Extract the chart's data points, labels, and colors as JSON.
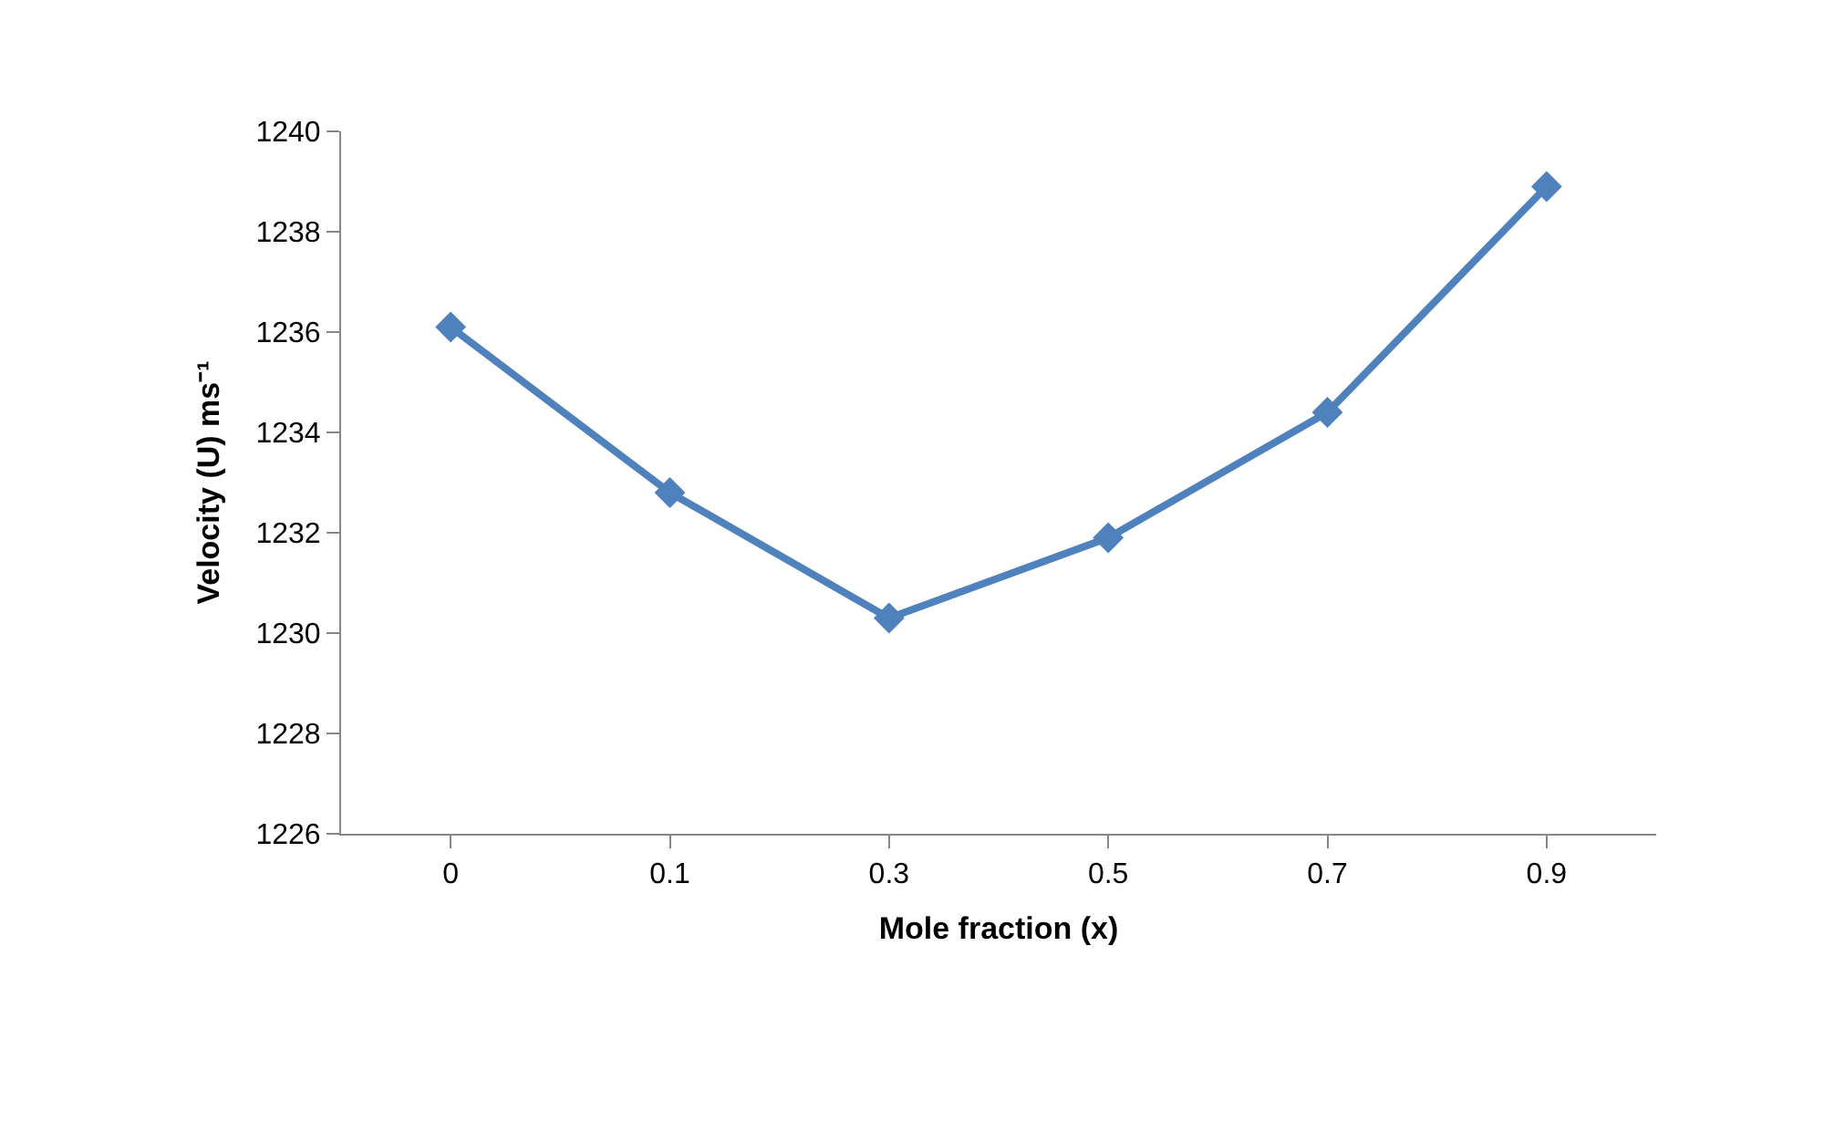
{
  "chart_data": {
    "type": "line",
    "xlabel": "Mole fraction (x)",
    "ylabel": "Velocity (U) ms⁻¹",
    "categories": [
      "0",
      "0.1",
      "0.3",
      "0.5",
      "0.7",
      "0.9"
    ],
    "series": [
      {
        "color": "#4f81bd",
        "values": [
          1236.1,
          1232.8,
          1230.3,
          1231.9,
          1234.4,
          1238.9
        ]
      }
    ],
    "ylim": [
      1226,
      1240
    ],
    "yticks": [
      1226,
      1228,
      1230,
      1232,
      1234,
      1236,
      1238,
      1240
    ],
    "legend": false,
    "marker": "diamond",
    "line_style": "solid"
  }
}
